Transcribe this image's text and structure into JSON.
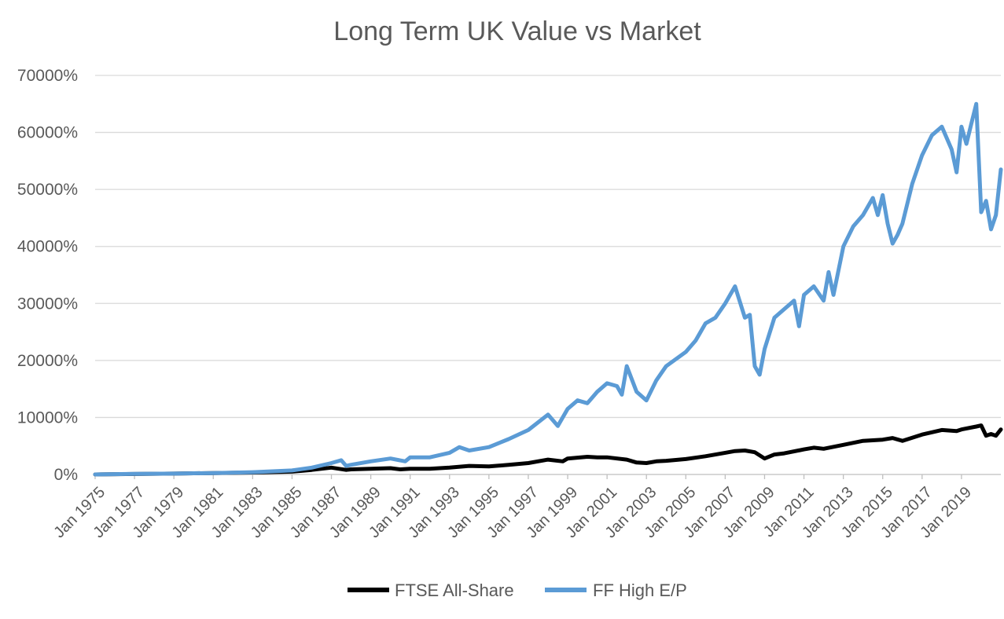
{
  "chart_data": {
    "type": "line",
    "title": "Long Term UK Value vs Market",
    "xlabel": "",
    "ylabel": "",
    "y_tick_labels": [
      "0%",
      "10000%",
      "20000%",
      "30000%",
      "40000%",
      "50000%",
      "60000%",
      "70000%"
    ],
    "y_tick_values": [
      0,
      10000,
      20000,
      30000,
      40000,
      50000,
      60000,
      70000
    ],
    "ylim": [
      0,
      70000
    ],
    "x_tick_labels": [
      "Jan 1975",
      "Jan 1977",
      "Jan 1979",
      "Jan 1981",
      "Jan 1983",
      "Jan 1985",
      "Jan 1987",
      "Jan 1989",
      "Jan 1991",
      "Jan 1993",
      "Jan 1995",
      "Jan 1997",
      "Jan 1999",
      "Jan 2001",
      "Jan 2003",
      "Jan 2005",
      "Jan 2007",
      "Jan 2009",
      "Jan 2011",
      "Jan 2013",
      "Jan 2015",
      "Jan 2017",
      "Jan 2019"
    ],
    "x_tick_years": [
      1975,
      1977,
      1979,
      1981,
      1983,
      1985,
      1987,
      1989,
      1991,
      1993,
      1995,
      1997,
      1999,
      2001,
      2003,
      2005,
      2007,
      2009,
      2011,
      2013,
      2015,
      2017,
      2019
    ],
    "xlim": [
      1975.0,
      2021.0
    ],
    "grid": "horizontal",
    "legend_position": "bottom",
    "series": [
      {
        "name": "FTSE All-Share",
        "color": "#000000",
        "x": [
          1975.0,
          1977.0,
          1979.0,
          1981.0,
          1983.0,
          1985.0,
          1986.0,
          1987.0,
          1987.75,
          1988.0,
          1989.0,
          1990.0,
          1990.5,
          1991.0,
          1992.0,
          1993.0,
          1994.0,
          1995.0,
          1996.0,
          1997.0,
          1998.0,
          1998.75,
          1999.0,
          2000.0,
          2000.5,
          2001.0,
          2002.0,
          2002.5,
          2003.0,
          2003.5,
          2004.0,
          2005.0,
          2006.0,
          2007.0,
          2007.5,
          2008.0,
          2008.5,
          2009.0,
          2009.5,
          2010.0,
          2011.0,
          2011.5,
          2012.0,
          2013.0,
          2014.0,
          2015.0,
          2015.5,
          2016.0,
          2017.0,
          2018.0,
          2018.75,
          2019.0,
          2019.75,
          2020.0,
          2020.25,
          2020.5,
          2020.75,
          2021.0
        ],
        "values": [
          0,
          80,
          150,
          250,
          350,
          500,
          800,
          1200,
          800,
          900,
          1000,
          1100,
          900,
          1000,
          1000,
          1200,
          1500,
          1400,
          1700,
          2000,
          2600,
          2300,
          2800,
          3100,
          3000,
          3000,
          2600,
          2100,
          2000,
          2300,
          2400,
          2700,
          3200,
          3800,
          4100,
          4200,
          3900,
          2800,
          3500,
          3700,
          4400,
          4700,
          4500,
          5200,
          5900,
          6100,
          6400,
          5900,
          7000,
          7800,
          7600,
          7900,
          8400,
          8600,
          6800,
          7100,
          6800,
          7900
        ]
      },
      {
        "name": "FF High E/P",
        "color": "#5B9BD5",
        "x": [
          1975.0,
          1977.0,
          1979.0,
          1981.0,
          1983.0,
          1985.0,
          1986.0,
          1987.0,
          1987.5,
          1987.75,
          1988.0,
          1989.0,
          1990.0,
          1990.75,
          1991.0,
          1992.0,
          1993.0,
          1993.5,
          1994.0,
          1995.0,
          1996.0,
          1997.0,
          1998.0,
          1998.5,
          1999.0,
          1999.5,
          2000.0,
          2000.5,
          2001.0,
          2001.5,
          2001.75,
          2002.0,
          2002.5,
          2003.0,
          2003.5,
          2004.0,
          2005.0,
          2005.5,
          2006.0,
          2006.5,
          2007.0,
          2007.5,
          2008.0,
          2008.25,
          2008.5,
          2008.75,
          2009.0,
          2009.5,
          2010.0,
          2010.5,
          2010.75,
          2011.0,
          2011.5,
          2012.0,
          2012.25,
          2012.5,
          2013.0,
          2013.5,
          2014.0,
          2014.5,
          2014.75,
          2015.0,
          2015.25,
          2015.5,
          2015.75,
          2016.0,
          2016.5,
          2017.0,
          2017.5,
          2018.0,
          2018.5,
          2018.75,
          2019.0,
          2019.25,
          2019.5,
          2019.75,
          2020.0,
          2020.25,
          2020.5,
          2020.75,
          2021.0
        ],
        "values": [
          0,
          100,
          150,
          250,
          400,
          700,
          1200,
          2000,
          2500,
          1500,
          1700,
          2300,
          2800,
          2300,
          3000,
          3000,
          3800,
          4800,
          4200,
          4800,
          6200,
          7800,
          10500,
          8500,
          11500,
          13000,
          12500,
          14500,
          16000,
          15500,
          14000,
          19000,
          14500,
          13000,
          16500,
          19000,
          21500,
          23500,
          26500,
          27500,
          30000,
          33000,
          27500,
          28000,
          19000,
          17500,
          22000,
          27500,
          29000,
          30500,
          26000,
          31500,
          33000,
          30500,
          35500,
          31500,
          40000,
          43500,
          45500,
          48500,
          45500,
          49000,
          44000,
          40500,
          42000,
          44000,
          51000,
          56000,
          59500,
          61000,
          57000,
          53000,
          61000,
          58000,
          61500,
          65000,
          46000,
          48000,
          43000,
          45500,
          53500
        ]
      }
    ]
  }
}
